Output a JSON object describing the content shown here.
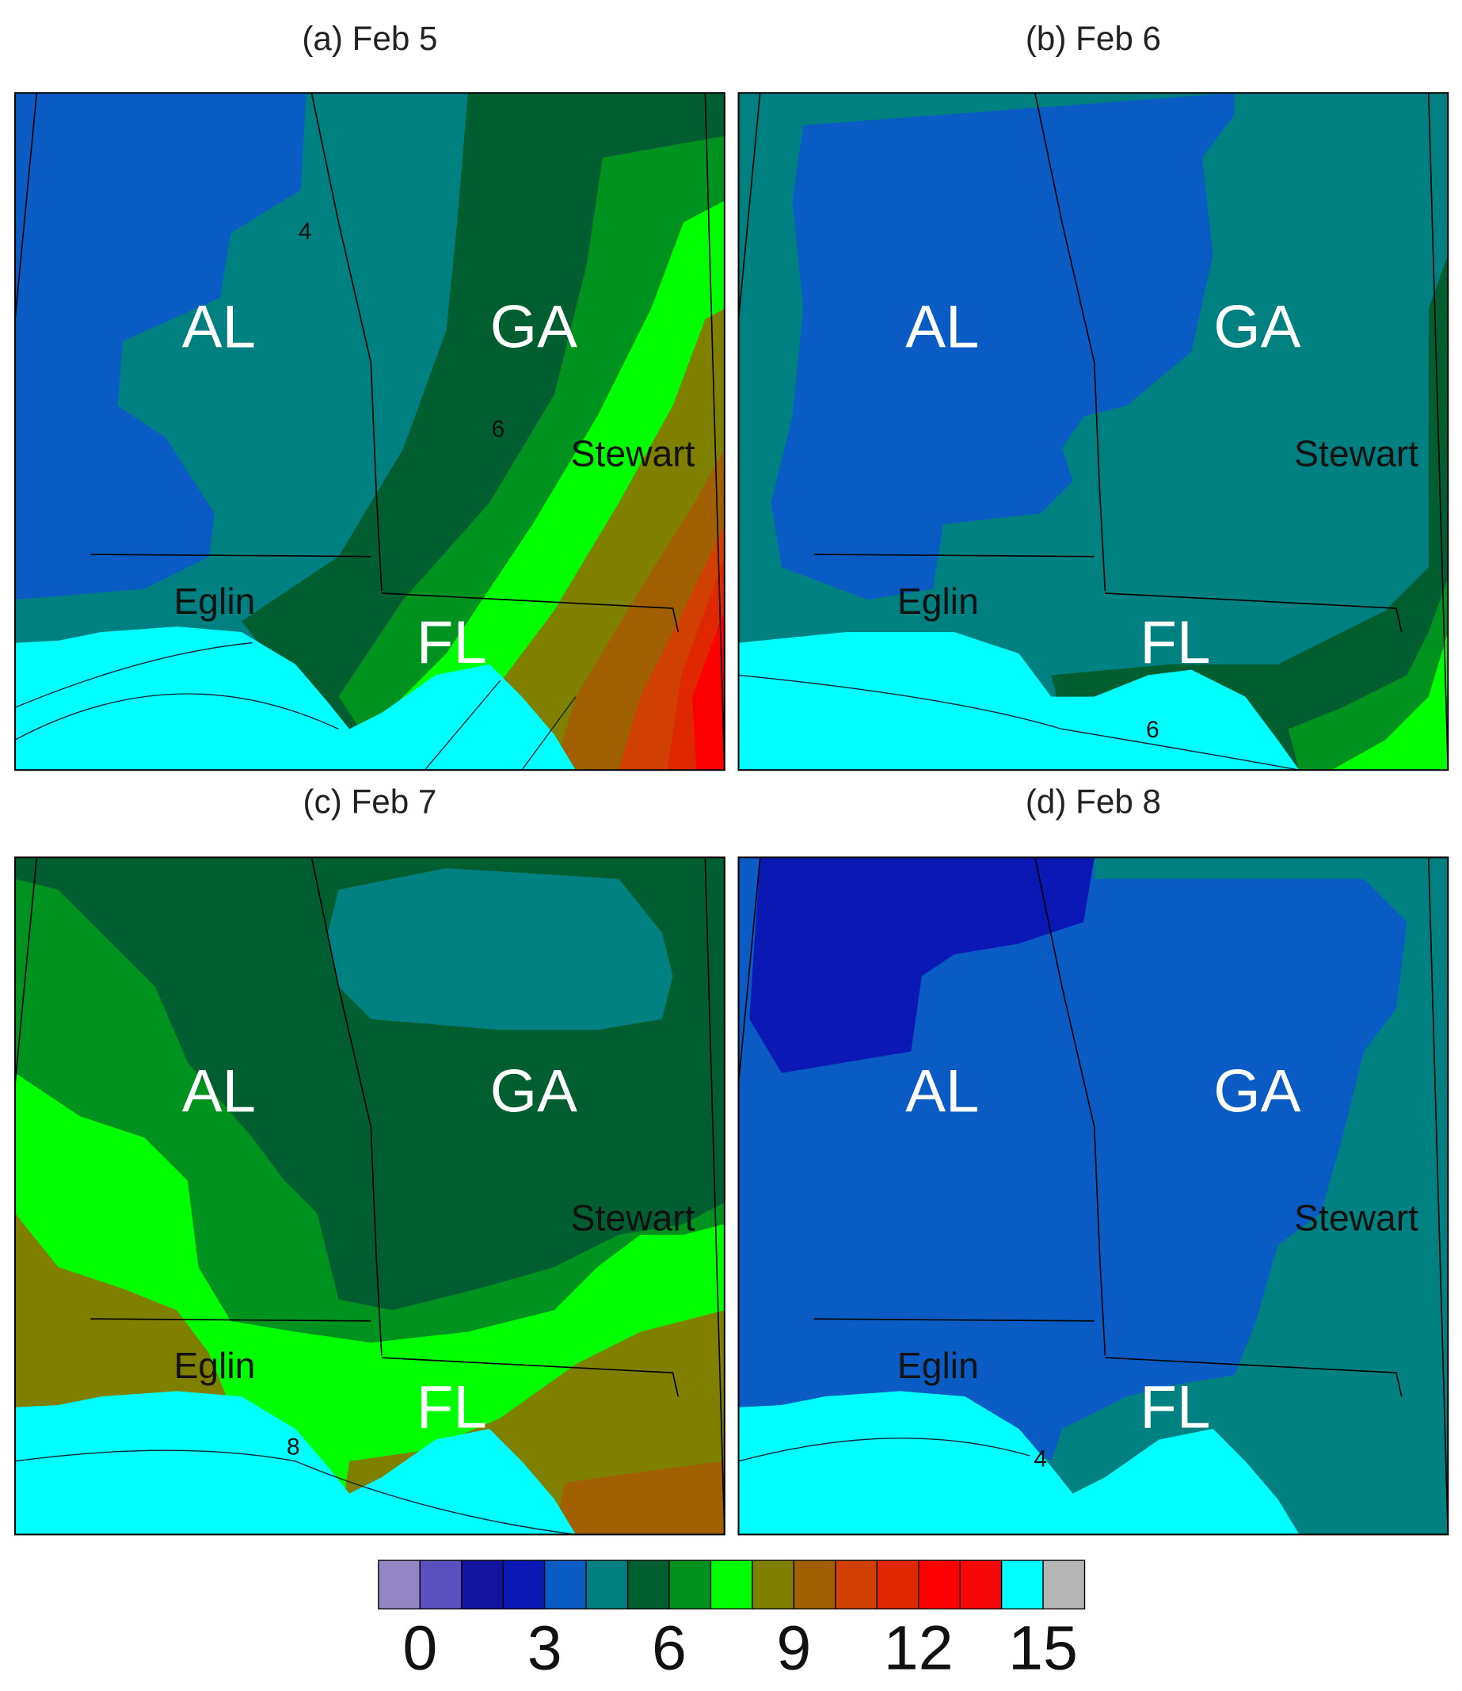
{
  "panels": [
    {
      "title": "(a) Feb 5",
      "labels": [
        "AL",
        "GA",
        "Stewart",
        "Eglin",
        "FL"
      ],
      "contour_labels": [
        "4",
        "6"
      ]
    },
    {
      "title": "(b) Feb 6",
      "labels": [
        "AL",
        "GA",
        "Stewart",
        "Eglin",
        "FL"
      ],
      "contour_labels": [
        "6"
      ]
    },
    {
      "title": "(c) Feb 7",
      "labels": [
        "AL",
        "GA",
        "Stewart",
        "Eglin",
        "FL"
      ],
      "contour_labels": [
        "8"
      ]
    },
    {
      "title": "(d) Feb 8",
      "labels": [
        "AL",
        "GA",
        "Stewart",
        "Eglin",
        "FL"
      ],
      "contour_labels": [
        "4"
      ]
    }
  ],
  "colorbar": {
    "colors": [
      "#9384c4",
      "#5a50c0",
      "#1414a0",
      "#0a18b4",
      "#0a5cc4",
      "#008080",
      "#005e30",
      "#00921e",
      "#00ff00",
      "#808000",
      "#a06000",
      "#d04000",
      "#e02800",
      "#ff0000",
      "#f80808",
      "#00ffff",
      "#b4b4b4"
    ],
    "lim": [
      -1,
      16
    ],
    "ticks": [
      0,
      3,
      6,
      9,
      12,
      15
    ]
  }
}
